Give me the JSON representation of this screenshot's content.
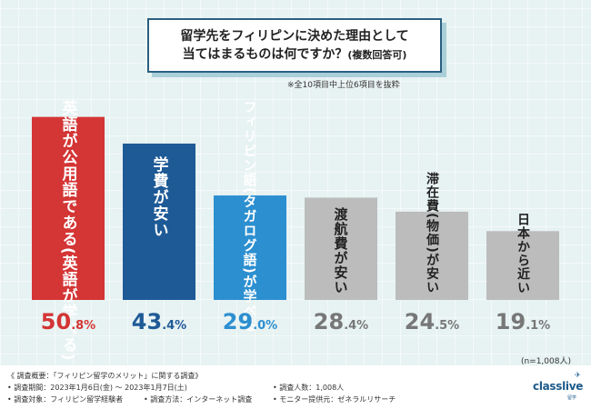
{
  "header": {
    "title_line1": "留学先をフィリピンに決めた理由として",
    "title_line2": "当てはまるものは何ですか？",
    "title_suffix": "(複数回答可)",
    "note": "※全10項目中上位6項目を抜粋"
  },
  "chart_data": {
    "type": "bar",
    "title": "留学先をフィリピンに決めた理由として当てはまるものは何ですか？(複数回答可)",
    "categories": [
      "英語が公用語である(英語が学べる)",
      "学費が安い",
      "フィリピン語(タガログ語)が学べる",
      "渡航費が安い",
      "滞在費(物価)が安い",
      "日本から近い"
    ],
    "values": [
      50.8,
      43.4,
      29.0,
      28.4,
      24.5,
      19.1
    ],
    "value_display": [
      {
        "int": "50",
        "dec": ".8",
        "unit": "%"
      },
      {
        "int": "43",
        "dec": ".4",
        "unit": "%"
      },
      {
        "int": "29",
        "dec": ".0",
        "unit": "%"
      },
      {
        "int": "28",
        "dec": ".4",
        "unit": "%"
      },
      {
        "int": "24",
        "dec": ".5",
        "unit": "%"
      },
      {
        "int": "19",
        "dec": ".1",
        "unit": "%"
      }
    ],
    "colors": [
      "#d43535",
      "#1e5a96",
      "#2c8fd0",
      "#bcbcbc",
      "#bcbcbc",
      "#bcbcbc"
    ],
    "value_colors": [
      "#d43535",
      "#1e5a96",
      "#2c8fd0",
      "#777777",
      "#777777",
      "#777777"
    ],
    "label_colors": [
      "#ffffff",
      "#ffffff",
      "#ffffff",
      "#222222",
      "#222222",
      "#222222"
    ],
    "ylim": [
      0,
      55
    ],
    "xlabel": "",
    "ylabel": "",
    "sample_size": "(n=1,008人)"
  },
  "footer": {
    "line1": "《 調査概要：「フィリピン留学のメリット」に関する調査》",
    "line2": "• 調査期間：2023年1月6日(金) ～ 2023年1月7日(土)",
    "line3a": "• 調査対象：フィリピン留学経験者",
    "line3b": "• 調査方法：インターネット調査",
    "line2r": "• 調査人数：1,008人",
    "line3r": "• モニター提供元：ゼネラルリサーチ",
    "logo": "classlive",
    "logo_sub": "留学"
  }
}
